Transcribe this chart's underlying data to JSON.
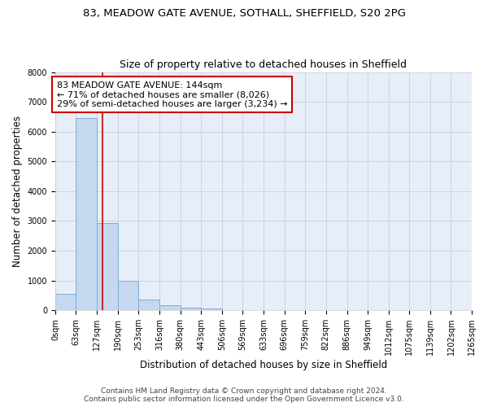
{
  "title1": "83, MEADOW GATE AVENUE, SOTHALL, SHEFFIELD, S20 2PG",
  "title2": "Size of property relative to detached houses in Sheffield",
  "xlabel": "Distribution of detached houses by size in Sheffield",
  "ylabel": "Number of detached properties",
  "bin_edges": [
    0,
    63,
    127,
    190,
    253,
    316,
    380,
    443,
    506,
    569,
    633,
    696,
    759,
    822,
    886,
    949,
    1012,
    1075,
    1139,
    1202,
    1265
  ],
  "bar_heights": [
    550,
    6450,
    2920,
    980,
    370,
    160,
    100,
    60,
    0,
    0,
    0,
    0,
    0,
    0,
    0,
    0,
    0,
    0,
    0,
    0
  ],
  "bar_color": "#c5d8ef",
  "bar_edge_color": "#7bafd4",
  "bar_edge_width": 0.7,
  "property_size": 144,
  "red_line_color": "#cc0000",
  "annotation_line1": "83 MEADOW GATE AVENUE: 144sqm",
  "annotation_line2": "← 71% of detached houses are smaller (8,026)",
  "annotation_line3": "29% of semi-detached houses are larger (3,234) →",
  "annotation_box_color": "#cc0000",
  "annotation_text_color": "black",
  "ylim_max": 8000,
  "yticks": [
    0,
    1000,
    2000,
    3000,
    4000,
    5000,
    6000,
    7000,
    8000
  ],
  "grid_color": "#c8d4e8",
  "background_color": "#e8eef8",
  "footer_line1": "Contains HM Land Registry data © Crown copyright and database right 2024.",
  "footer_line2": "Contains public sector information licensed under the Open Government Licence v3.0.",
  "title1_fontsize": 9.5,
  "title2_fontsize": 9,
  "axis_label_fontsize": 8.5,
  "tick_fontsize": 7,
  "annotation_fontsize": 8,
  "footer_fontsize": 6.5
}
